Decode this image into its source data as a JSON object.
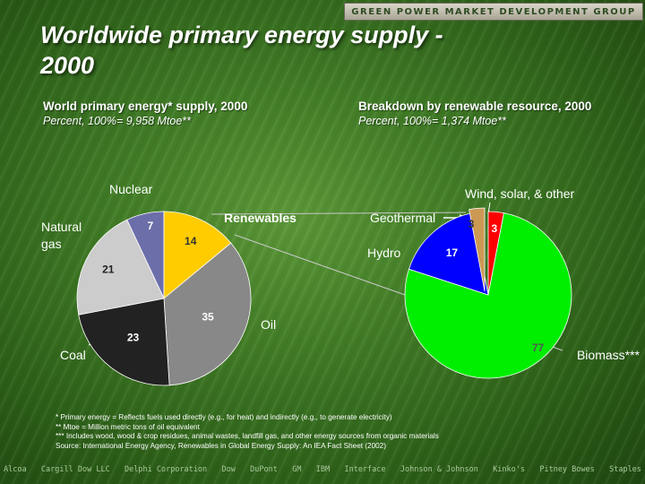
{
  "header": {
    "brand": "GREEN POWER MARKET DEVELOPMENT GROUP",
    "title_line1": "Worldwide primary energy supply -",
    "title_line2": "2000"
  },
  "left_chart": {
    "subtitle": "World primary energy* supply, 2000",
    "subnote": "Percent, 100%= 9,958 Mtoe**"
  },
  "right_chart": {
    "subtitle": "Breakdown by renewable resource, 2000",
    "subnote": "Percent, 100%= 1,374 Mtoe**"
  },
  "chart_data": [
    {
      "type": "pie",
      "title": "World primary energy* supply, 2000",
      "subtitle": "Percent, 100%= 9,958 Mtoe**",
      "labels": [
        "Nuclear",
        "Renewables",
        "Oil",
        "Coal",
        "Natural gas"
      ],
      "values": [
        7,
        14,
        35,
        23,
        21
      ],
      "colors": [
        "#6c6eaa",
        "#ffcc00",
        "#888888",
        "#222222",
        "#cccccc"
      ]
    },
    {
      "type": "pie",
      "title": "Breakdown by renewable resource, 2000",
      "subtitle": "Percent, 100%= 1,374 Mtoe**",
      "labels": [
        "Wind, solar, & other",
        "Biomass***",
        "Hydro",
        "Geothermal"
      ],
      "values": [
        3,
        77,
        17,
        3
      ],
      "colors": [
        "#ff0000",
        "#00ee00",
        "#0000ff",
        "#cc9955"
      ]
    }
  ],
  "footnotes": [
    "*  Primary energy = Reflects fuels used directly (e.g., for heat) and indirectly (e.g., to generate electricity)",
    "** Mtoe = Million metric tons of oil equivalent",
    "*** Includes wood, wood & crop residues, animal wastes, landfill gas, and other energy sources from organic materials",
    "Source: International Energy Agency, Renewables in Global Energy Supply: An IEA Fact Sheet (2002)"
  ],
  "sponsors": [
    "Alcoa",
    "Cargill Dow LLC",
    "Delphi Corporation",
    "Dow",
    "DuPont",
    "GM",
    "IBM",
    "Interface",
    "Johnson & Johnson",
    "Kinko's",
    "Pitney Bowes",
    "Staples"
  ]
}
